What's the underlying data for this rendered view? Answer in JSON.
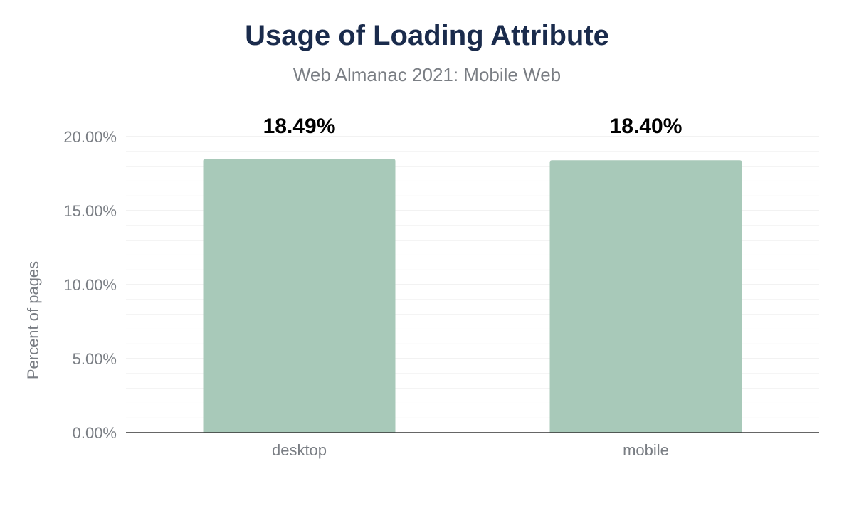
{
  "chart_data": {
    "type": "bar",
    "title": "Usage of Loading Attribute",
    "subtitle": "Web Almanac 2021: Mobile Web",
    "categories": [
      "desktop",
      "mobile"
    ],
    "values": [
      18.49,
      18.4
    ],
    "data_labels": [
      "18.49%",
      "18.40%"
    ],
    "xlabel": "",
    "ylabel": "Percent of pages",
    "ylim": [
      0,
      20
    ],
    "yticks": [
      "0.00%",
      "5.00%",
      "10.00%",
      "15.00%",
      "20.00%"
    ],
    "grid": true,
    "bar_color": "#a8c9b9",
    "title_color": "#1a2b4c"
  }
}
